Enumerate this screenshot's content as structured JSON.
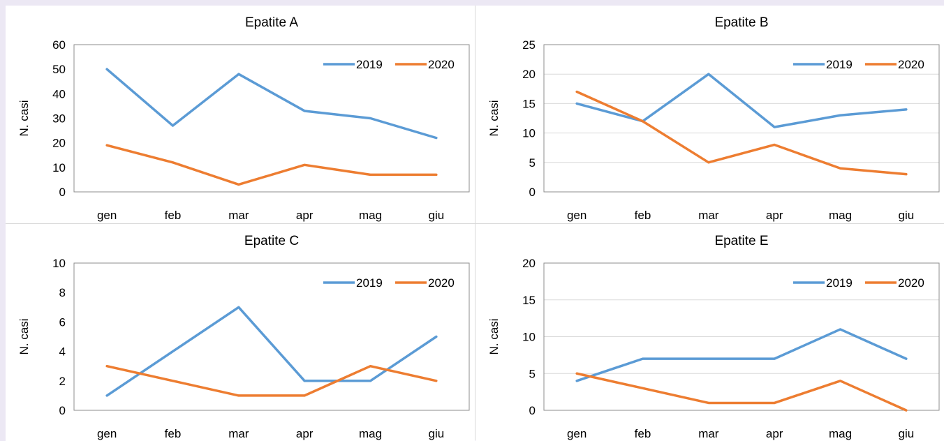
{
  "chart_data": [
    {
      "type": "line",
      "title": "Epatite A",
      "ylabel": "N. casi",
      "xlabel": "",
      "categories": [
        "gen",
        "feb",
        "mar",
        "apr",
        "mag",
        "giu"
      ],
      "ylim": [
        0,
        60
      ],
      "yticks": [
        0,
        10,
        20,
        30,
        40,
        50,
        60
      ],
      "grid": false,
      "legend": "top-right",
      "series": [
        {
          "name": "2019",
          "color": "#5b9bd5",
          "values": [
            50,
            27,
            48,
            33,
            30,
            22
          ]
        },
        {
          "name": "2020",
          "color": "#ed7d31",
          "values": [
            19,
            12,
            3,
            11,
            7,
            7
          ]
        }
      ]
    },
    {
      "type": "line",
      "title": "Epatite B",
      "ylabel": "N. casi",
      "xlabel": "",
      "categories": [
        "gen",
        "feb",
        "mar",
        "apr",
        "mag",
        "giu"
      ],
      "ylim": [
        0,
        25
      ],
      "yticks": [
        0,
        5,
        10,
        15,
        20,
        25
      ],
      "grid": true,
      "legend": "top-right",
      "series": [
        {
          "name": "2019",
          "color": "#5b9bd5",
          "values": [
            15,
            12,
            20,
            11,
            13,
            14
          ]
        },
        {
          "name": "2020",
          "color": "#ed7d31",
          "values": [
            17,
            12,
            5,
            8,
            4,
            3
          ]
        }
      ]
    },
    {
      "type": "line",
      "title": "Epatite C",
      "ylabel": "N. casi",
      "xlabel": "",
      "categories": [
        "gen",
        "feb",
        "mar",
        "apr",
        "mag",
        "giu"
      ],
      "ylim": [
        0,
        10
      ],
      "yticks": [
        0,
        2,
        4,
        6,
        8,
        10
      ],
      "grid": false,
      "legend": "top-right",
      "series": [
        {
          "name": "2019",
          "color": "#5b9bd5",
          "values": [
            1,
            4,
            7,
            2,
            2,
            5
          ]
        },
        {
          "name": "2020",
          "color": "#ed7d31",
          "values": [
            3,
            2,
            1,
            1,
            3,
            2
          ]
        }
      ]
    },
    {
      "type": "line",
      "title": "Epatite E",
      "ylabel": "N. casi",
      "xlabel": "",
      "categories": [
        "gen",
        "feb",
        "mar",
        "apr",
        "mag",
        "giu"
      ],
      "ylim": [
        0,
        20
      ],
      "yticks": [
        0,
        5,
        10,
        15,
        20
      ],
      "grid": true,
      "legend": "top-right",
      "series": [
        {
          "name": "2019",
          "color": "#5b9bd5",
          "values": [
            4,
            7,
            7,
            7,
            11,
            7
          ]
        },
        {
          "name": "2020",
          "color": "#ed7d31",
          "values": [
            5,
            3,
            1,
            1,
            4,
            0
          ]
        }
      ]
    }
  ]
}
